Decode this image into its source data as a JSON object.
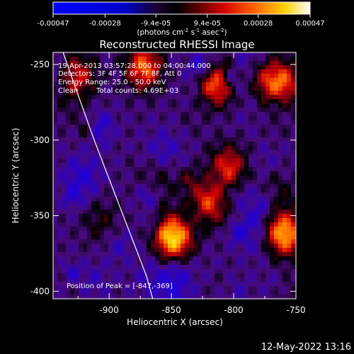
{
  "footer_date": "12-May-2022 13:16",
  "chart_data": {
    "type": "heatmap",
    "title": "Reconstructed RHESSI Image",
    "xlabel": "Heliocentric X (arcsec)",
    "ylabel": "Heliocentric Y (arcsec)",
    "xlim": [
      -945,
      -750
    ],
    "ylim": [
      -405,
      -242
    ],
    "x_ticks": [
      -900,
      -850,
      -800,
      -750
    ],
    "y_ticks": [
      -250,
      -300,
      -350,
      -400
    ],
    "grid": false,
    "colorbar": {
      "position": "top",
      "range": [
        -0.00047,
        0.00047
      ],
      "tick_labels": [
        "-0.00047",
        "-0.00028",
        "-9.4e-05",
        "9.4e-05",
        "0.00028",
        "0.00047"
      ],
      "tick_values": [
        -0.00047,
        -0.00028,
        -9.4e-05,
        9.4e-05,
        0.00028,
        0.00047
      ],
      "unit_label": "(photons cm",
      "unit_parts": [
        "(photons cm",
        "-2",
        " s",
        "-1",
        " asec",
        "-2",
        ")"
      ]
    },
    "annotations": {
      "time_range": "19-Apr-2013 03:57:28.000 to 04:00:44.000",
      "detectors": "Detectors: 3F 4F 5F 6F 7F 8F, Att 0",
      "energy_range": "Energy Range: 25.0 - 50.0 keV",
      "method": "Clean",
      "total_counts": "Total counts: 4.69E+03",
      "peak_position": "Position of Peak = [-847,-369]"
    },
    "peak": {
      "x": -847,
      "y": -369
    },
    "limb_curve": [
      [
        -937,
        -242
      ],
      [
        -925,
        -270
      ],
      [
        -912,
        -300
      ],
      [
        -898,
        -330
      ],
      [
        -884,
        -360
      ],
      [
        -870,
        -390
      ],
      [
        -865,
        -405
      ]
    ],
    "bright_sources": [
      {
        "x": -848,
        "y": -365,
        "value": 0.00047
      },
      {
        "x": -760,
        "y": -362,
        "value": 0.00044
      },
      {
        "x": -820,
        "y": -340,
        "value": 0.00038
      },
      {
        "x": -812,
        "y": -262,
        "value": 0.00036
      },
      {
        "x": -872,
        "y": -252,
        "value": 0.00034
      },
      {
        "x": -805,
        "y": -318,
        "value": 0.0003
      },
      {
        "x": -762,
        "y": -262,
        "value": 0.0003
      },
      {
        "x": -925,
        "y": -258,
        "value": 0.00024
      }
    ]
  }
}
